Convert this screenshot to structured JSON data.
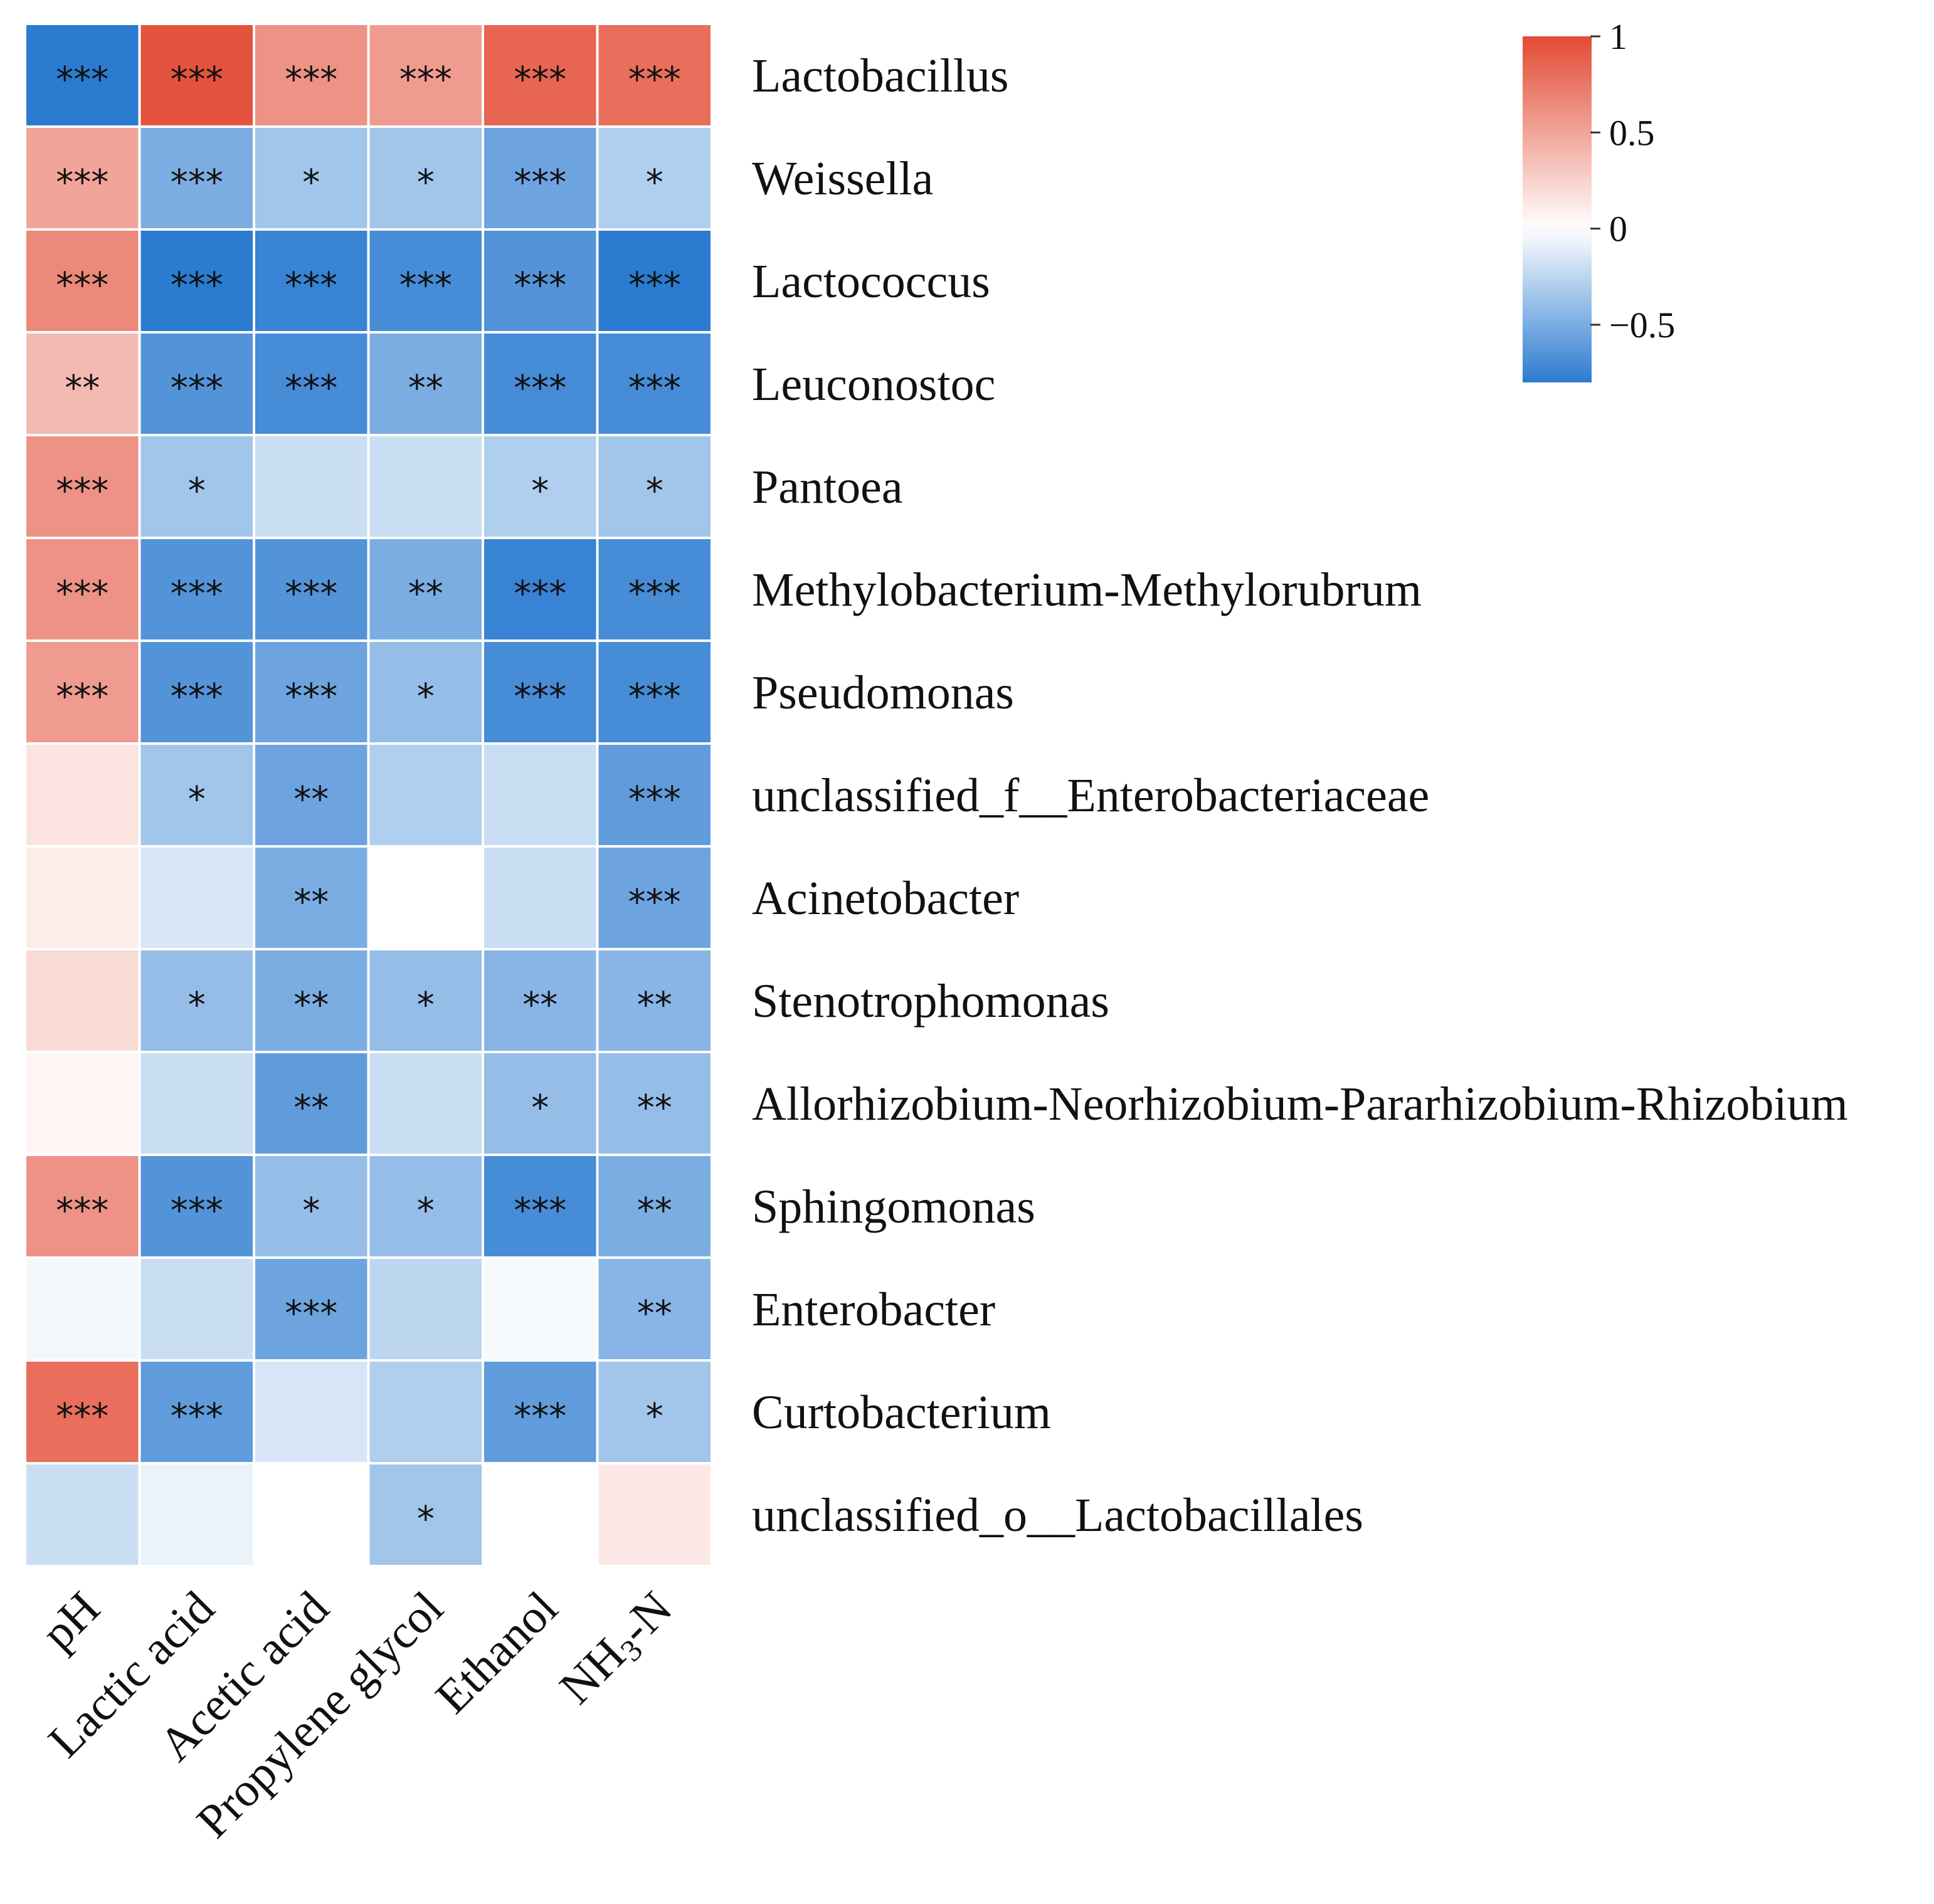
{
  "chart_data": {
    "type": "heatmap",
    "title": "",
    "columns": [
      "pH",
      "Lactic acid",
      "Acetic acid",
      "Propylene glycol",
      "Ethanol",
      "NH3-N"
    ],
    "rows": [
      "Lactobacillus",
      "Weissella",
      "Lactococcus",
      "Leuconostoc",
      "Pantoea",
      "Methylobacterium-Methylorubrum",
      "Pseudomonas",
      "unclassified_f__Enterobacteriaceae",
      "Acinetobacter",
      "Stenotrophomonas",
      "Allorhizobium-Neorhizobium-Pararhizobium-Rhizobium",
      "Sphingomonas",
      "Enterobacter",
      "Curtobacterium",
      "unclassified_o__Lactobacillales"
    ],
    "values": [
      [
        -0.8,
        0.95,
        0.6,
        0.55,
        0.85,
        0.8
      ],
      [
        0.5,
        -0.5,
        -0.35,
        -0.35,
        -0.55,
        -0.3
      ],
      [
        0.65,
        -0.85,
        -0.75,
        -0.7,
        -0.65,
        -0.85
      ],
      [
        0.38,
        -0.65,
        -0.7,
        -0.5,
        -0.7,
        -0.7
      ],
      [
        0.6,
        -0.35,
        -0.2,
        -0.2,
        -0.3,
        -0.35
      ],
      [
        0.6,
        -0.65,
        -0.65,
        -0.5,
        -0.75,
        -0.7
      ],
      [
        0.55,
        -0.65,
        -0.55,
        -0.4,
        -0.7,
        -0.7
      ],
      [
        0.15,
        -0.35,
        -0.55,
        -0.3,
        -0.2,
        -0.6
      ],
      [
        0.1,
        -0.15,
        -0.5,
        0.0,
        -0.2,
        -0.55
      ],
      [
        0.2,
        -0.4,
        -0.5,
        -0.4,
        -0.45,
        -0.45
      ],
      [
        0.05,
        -0.2,
        -0.6,
        -0.2,
        -0.4,
        -0.4
      ],
      [
        0.6,
        -0.65,
        -0.4,
        -0.4,
        -0.7,
        -0.5
      ],
      [
        -0.05,
        -0.2,
        -0.55,
        -0.25,
        -0.03,
        -0.45
      ],
      [
        0.8,
        -0.6,
        -0.15,
        -0.3,
        -0.6,
        -0.35
      ],
      [
        -0.2,
        -0.08,
        0.0,
        -0.35,
        0.0,
        0.12
      ]
    ],
    "significance": [
      [
        "***",
        "***",
        "***",
        "***",
        "***",
        "***"
      ],
      [
        "***",
        "***",
        "*",
        "*",
        "***",
        "*"
      ],
      [
        "***",
        "***",
        "***",
        "***",
        "***",
        "***"
      ],
      [
        "**",
        "***",
        "***",
        "**",
        "***",
        "***"
      ],
      [
        "***",
        "*",
        "",
        "",
        "*",
        "*"
      ],
      [
        "***",
        "***",
        "***",
        "**",
        "***",
        "***"
      ],
      [
        "***",
        "***",
        "***",
        "*",
        "***",
        "***"
      ],
      [
        "",
        "*",
        "**",
        "",
        "",
        "***"
      ],
      [
        "",
        "",
        "**",
        "",
        "",
        "***"
      ],
      [
        "",
        "*",
        "**",
        "*",
        "**",
        "**"
      ],
      [
        "",
        "",
        "**",
        "",
        "*",
        "**"
      ],
      [
        "***",
        "***",
        "*",
        "*",
        "***",
        "**"
      ],
      [
        "",
        "",
        "***",
        "",
        "",
        "**"
      ],
      [
        "***",
        "***",
        "",
        "",
        "***",
        "*"
      ],
      [
        "",
        "",
        "",
        "*",
        "",
        ""
      ]
    ],
    "colorbar": {
      "range": [
        -0.8,
        1.0
      ],
      "ticks": [
        1,
        0.5,
        0,
        -0.5
      ],
      "tick_labels": [
        "1",
        "0.5",
        "0",
        "−0.5"
      ]
    },
    "colors": {
      "positive": "#e34a33",
      "neutral": "#ffffff",
      "negative": "#2b7bd0"
    }
  }
}
